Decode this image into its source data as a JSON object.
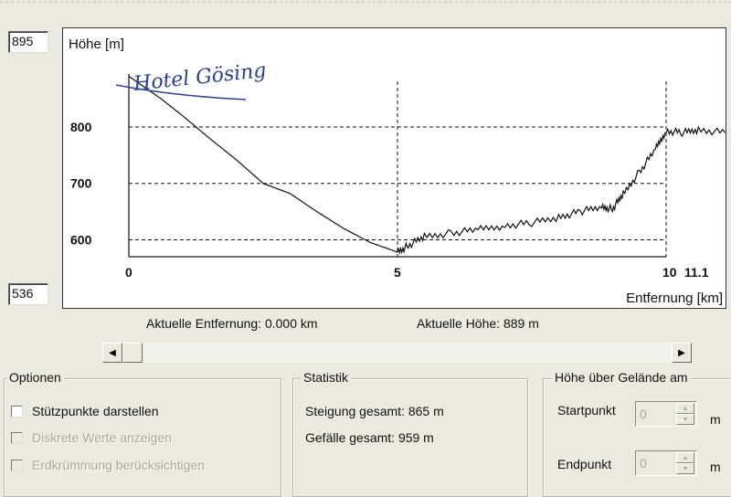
{
  "y_max_field": "895",
  "y_min_field": "536",
  "chart_data": {
    "type": "line",
    "ylabel": "Höhe [m]",
    "xlabel": "Entfernung [km]",
    "x_ticks": [
      "0",
      "5",
      "10",
      "11.1"
    ],
    "y_ticks": [
      "800",
      "700",
      "600"
    ],
    "xlim": [
      0,
      11.1
    ],
    "ylim": [
      536,
      895
    ],
    "grid": true,
    "annotation": "Hotel Gösing",
    "series": [
      {
        "x": [
          0,
          0.3,
          0.6,
          1.0,
          1.5,
          2.0,
          2.5,
          3.0,
          3.5,
          4.0,
          4.5,
          4.8,
          5.0,
          5.2,
          5.5,
          6.0,
          6.5,
          7.0,
          7.5,
          8.0,
          8.4,
          8.8,
          9.0,
          9.2,
          9.5,
          9.8,
          10.0,
          10.3,
          10.6,
          11.1
        ],
        "y": [
          890,
          870,
          850,
          820,
          780,
          742,
          700,
          682,
          650,
          620,
          595,
          585,
          578,
          590,
          605,
          612,
          618,
          625,
          630,
          640,
          650,
          658,
          655,
          680,
          720,
          760,
          793,
          790,
          795,
          790
        ]
      }
    ]
  },
  "status": {
    "distance": "Aktuelle Entfernung: 0.000 km",
    "height": "Aktuelle Höhe: 889 m"
  },
  "options": {
    "title": "Optionen",
    "items": [
      {
        "label": "Stützpunkte darstellen",
        "enabled": true
      },
      {
        "label": "Diskrete Werte anzeigen",
        "enabled": false
      },
      {
        "label": "Erdkrümmung berücksichtigen",
        "enabled": false
      }
    ]
  },
  "stats": {
    "title": "Statistik",
    "ascent": "Steigung gesamt: 865 m",
    "descent": "Gefälle gesamt: 959 m"
  },
  "height_terrain": {
    "title": "Höhe über Gelände am",
    "start_label": "Startpunkt",
    "start_value": "0",
    "end_label": "Endpunkt",
    "end_value": "0",
    "unit": "m"
  }
}
